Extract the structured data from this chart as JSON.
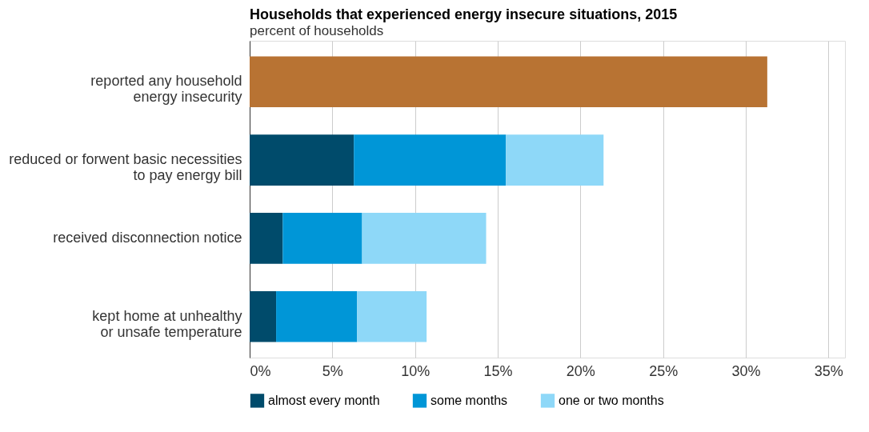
{
  "chart_data": {
    "type": "bar",
    "orientation": "horizontal",
    "stacked": true,
    "title": "Households that experienced energy insecure situations, 2015",
    "subtitle": "percent of households",
    "categories": [
      "reported any household\nenergy insecurity",
      "reduced or forwent basic necessities\nto pay energy bill",
      "received disconnection notice",
      "kept home at unhealthy\nor unsafe temperature"
    ],
    "series": [
      {
        "color": "#b87333",
        "values": [
          31.3,
          null,
          null,
          null
        ]
      },
      {
        "name": "almost every month",
        "color": "#004b6b",
        "values": [
          null,
          6.3,
          2.0,
          1.6
        ]
      },
      {
        "name": "some months",
        "color": "#0096d7",
        "values": [
          null,
          9.2,
          4.8,
          4.9
        ]
      },
      {
        "name": "one or two months",
        "color": "#8ed8f8",
        "values": [
          null,
          5.9,
          7.5,
          4.2
        ]
      }
    ],
    "xlim": [
      0,
      36
    ],
    "xticks": [
      {
        "value": 0,
        "label": "0%"
      },
      {
        "value": 5,
        "label": "5%"
      },
      {
        "value": 10,
        "label": "10%"
      },
      {
        "value": 15,
        "label": "15%"
      },
      {
        "value": 20,
        "label": "20%"
      },
      {
        "value": 25,
        "label": "25%"
      },
      {
        "value": 30,
        "label": "30%"
      },
      {
        "value": 35,
        "label": "35%"
      }
    ],
    "grid": "x",
    "legend": "bottom"
  }
}
